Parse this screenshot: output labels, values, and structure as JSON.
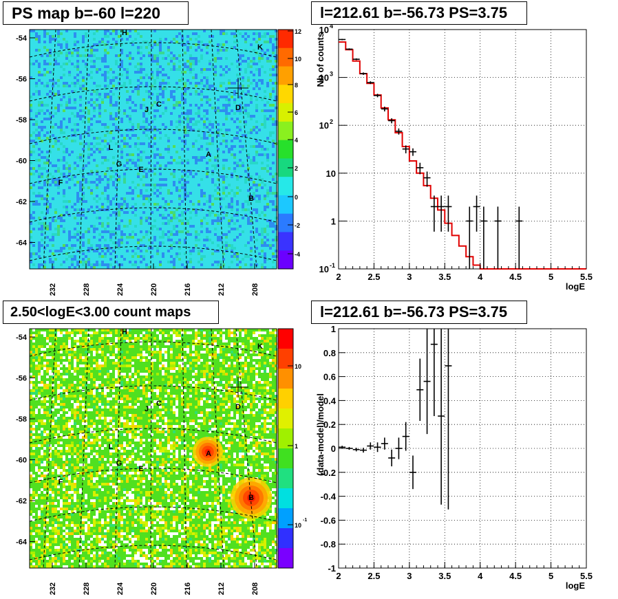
{
  "titles": {
    "ps_map": "PS map b=-60 l=220",
    "spectrum": "l=212.61 b=-56.73 PS=3.75",
    "count_map": "2.50<logE<3.00 count maps",
    "residual": "l=212.61 b=-56.73 PS=3.75"
  },
  "maps": {
    "y_ticks": [
      "-54",
      "-56",
      "-58",
      "-60",
      "-62",
      "-64"
    ],
    "x_ticks": [
      "232",
      "228",
      "224",
      "220",
      "216",
      "212",
      "208"
    ],
    "sources": [
      "H",
      "K",
      "C",
      "J",
      "D",
      "L",
      "A",
      "G",
      "E",
      "F",
      "B"
    ],
    "ps_scale": {
      "ticks": [
        "12",
        "10",
        "8",
        "6",
        "4",
        "2",
        "0",
        "-2",
        "-4"
      ],
      "range": [
        -5,
        12
      ]
    },
    "count_scale": {
      "ticks": [
        "10",
        "1",
        "10"
      ],
      "exp_label": "-1"
    }
  },
  "chart_data": [
    {
      "type": "line",
      "panel": "spectrum",
      "xlabel": "logE",
      "ylabel": "Nb of counts",
      "xlim": [
        2,
        5.5
      ],
      "ylim": [
        0.1,
        10000
      ],
      "log_y": true,
      "grid": true,
      "x_ticks": [
        "2",
        "2.5",
        "3",
        "3.5",
        "4",
        "4.5",
        "5",
        "5.5"
      ],
      "y_ticks": [
        {
          "base": "10",
          "exp": "4"
        },
        {
          "base": "10",
          "exp": "3"
        },
        {
          "base": "10",
          "exp": "2"
        },
        {
          "base": "10",
          "exp": ""
        },
        {
          "base": "1",
          "exp": ""
        },
        {
          "base": "10",
          "exp": "-1"
        }
      ],
      "series": [
        {
          "kind": "model-step",
          "color": "#e00000",
          "edges": [
            2,
            2.1,
            2.2,
            2.3,
            2.4,
            2.5,
            2.6,
            2.7,
            2.8,
            2.9,
            3,
            3.1,
            3.2,
            3.3,
            3.4,
            3.5,
            3.6,
            3.7,
            3.8,
            3.9,
            4,
            4.1,
            4.2,
            4.3,
            4.4,
            4.5,
            4.6,
            4.7,
            4.8,
            4.9,
            5,
            5.1,
            5.2,
            5.3,
            5.4,
            5.5
          ],
          "values": [
            5500,
            3800,
            2200,
            1200,
            750,
            430,
            230,
            130,
            70,
            36,
            18,
            10,
            5.5,
            3,
            1.7,
            0.9,
            0.5,
            0.3,
            0.18,
            0.12,
            0.1,
            0.1,
            0.1,
            0.1,
            0.1,
            0.1,
            0.1,
            0.1,
            0.1,
            0.1,
            0.1,
            0.1,
            0.1,
            0.1,
            0.1
          ]
        },
        {
          "kind": "data",
          "color": "#000000",
          "points": [
            {
              "x": 2.05,
              "y": 6200,
              "lo": 6000,
              "hi": 6400
            },
            {
              "x": 2.15,
              "y": 3900,
              "lo": 3750,
              "hi": 4050
            },
            {
              "x": 2.25,
              "y": 2400,
              "lo": 2300,
              "hi": 2500
            },
            {
              "x": 2.35,
              "y": 1200,
              "lo": 1130,
              "hi": 1270
            },
            {
              "x": 2.45,
              "y": 780,
              "lo": 730,
              "hi": 830
            },
            {
              "x": 2.55,
              "y": 420,
              "lo": 385,
              "hi": 455
            },
            {
              "x": 2.65,
              "y": 220,
              "lo": 195,
              "hi": 245
            },
            {
              "x": 2.75,
              "y": 125,
              "lo": 110,
              "hi": 140
            },
            {
              "x": 2.85,
              "y": 75,
              "lo": 64,
              "hi": 86
            },
            {
              "x": 2.95,
              "y": 32,
              "lo": 26,
              "hi": 38
            },
            {
              "x": 3.05,
              "y": 28,
              "lo": 23,
              "hi": 33
            },
            {
              "x": 3.15,
              "y": 13,
              "lo": 9.5,
              "hi": 16.5
            },
            {
              "x": 3.25,
              "y": 8,
              "lo": 5.2,
              "hi": 10.8
            },
            {
              "x": 3.35,
              "y": 2,
              "lo": 0.6,
              "hi": 3.4
            },
            {
              "x": 3.45,
              "y": 2,
              "lo": 0.6,
              "hi": 3.4
            },
            {
              "x": 3.55,
              "y": 2,
              "lo": 0.6,
              "hi": 3.4
            },
            {
              "x": 3.85,
              "y": 1,
              "lo": 0.1,
              "hi": 2
            },
            {
              "x": 3.95,
              "y": 2,
              "lo": 0.6,
              "hi": 3.4
            },
            {
              "x": 4.05,
              "y": 1,
              "lo": 0.1,
              "hi": 2
            },
            {
              "x": 4.25,
              "y": 1,
              "lo": 0.1,
              "hi": 2
            },
            {
              "x": 4.55,
              "y": 1,
              "lo": 0.1,
              "hi": 2
            }
          ]
        }
      ]
    },
    {
      "type": "scatter",
      "panel": "residual",
      "xlabel": "logE",
      "ylabel": "(data-model)/model",
      "xlim": [
        2,
        5.5
      ],
      "ylim": [
        -1,
        1
      ],
      "grid": true,
      "x_ticks": [
        "2",
        "2.5",
        "3",
        "3.5",
        "4",
        "4.5",
        "5",
        "5.5"
      ],
      "y_ticks": [
        "1",
        "0.8",
        "0.6",
        "0.4",
        "0.2",
        "0",
        "-0.2",
        "-0.4",
        "-0.6",
        "-0.8",
        "-1"
      ],
      "points": [
        {
          "x": 2.05,
          "y": 0.01,
          "err": 0.012
        },
        {
          "x": 2.15,
          "y": 0.0,
          "err": 0.012
        },
        {
          "x": 2.25,
          "y": -0.01,
          "err": 0.015
        },
        {
          "x": 2.35,
          "y": -0.015,
          "err": 0.02
        },
        {
          "x": 2.45,
          "y": 0.02,
          "err": 0.03
        },
        {
          "x": 2.55,
          "y": 0.01,
          "err": 0.04
        },
        {
          "x": 2.65,
          "y": 0.04,
          "err": 0.05
        },
        {
          "x": 2.75,
          "y": -0.08,
          "err": 0.07
        },
        {
          "x": 2.85,
          "y": 0.0,
          "err": 0.09
        },
        {
          "x": 2.95,
          "y": 0.1,
          "err": 0.12
        },
        {
          "x": 3.05,
          "y": -0.2,
          "err": 0.14
        },
        {
          "x": 3.15,
          "y": 0.49,
          "err": 0.26
        },
        {
          "x": 3.25,
          "y": 0.56,
          "err": 0.44
        },
        {
          "x": 3.35,
          "y": 0.87,
          "err": 0.6
        },
        {
          "x": 3.45,
          "y": 0.27,
          "err": 0.74
        },
        {
          "x": 3.55,
          "y": 0.69,
          "err": 1.2
        }
      ]
    }
  ]
}
